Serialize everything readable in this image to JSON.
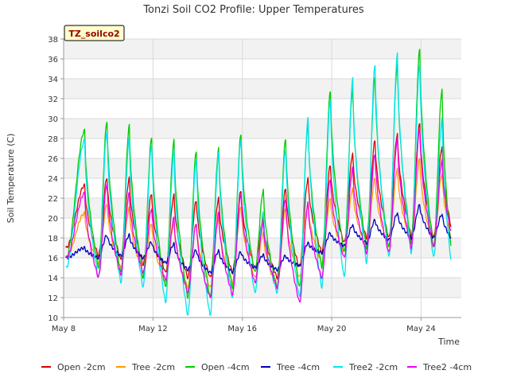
{
  "chart_data": {
    "type": "line",
    "title": "Tonzi Soil CO2 Profile: Upper Temperatures",
    "badge": "TZ_soilco2",
    "xlabel": "Time",
    "ylabel": "Soil Temperature (C)",
    "x_ticks": [
      "May 8",
      "May 12",
      "May 16",
      "May 20",
      "May 24"
    ],
    "x_tick_days": [
      8,
      12,
      16,
      20,
      24
    ],
    "xlim_days": [
      8,
      25.8
    ],
    "x_start_day": 8.1,
    "x_end_day": 25.35,
    "ylim": [
      10,
      38
    ],
    "y_ticks": [
      10,
      12,
      14,
      16,
      18,
      20,
      22,
      24,
      26,
      28,
      30,
      32,
      34,
      36,
      38
    ],
    "grid": true,
    "legend_position": "bottom",
    "peak_days": [
      8.95,
      9.95,
      10.95,
      11.95,
      12.95,
      13.95,
      14.95,
      15.95,
      16.95,
      17.95,
      18.95,
      19.95,
      20.95,
      21.95,
      22.95,
      23.95,
      24.95
    ],
    "series": [
      {
        "name": "Open -2cm",
        "color": "#dd0000",
        "peaks": [
          23.3,
          24.1,
          24.0,
          22.5,
          22.3,
          21.8,
          22.0,
          22.8,
          20.0,
          23.0,
          24.0,
          25.3,
          26.5,
          27.8,
          28.5,
          29.5,
          27.2
        ],
        "mins": [
          17.0,
          16.2,
          15.8,
          15.3,
          14.5,
          14.0,
          14.0,
          14.5,
          15.0,
          14.0,
          15.0,
          16.5,
          17.5,
          18.0,
          18.0,
          18.2,
          18.0,
          19.0
        ]
      },
      {
        "name": "Tree -2cm",
        "color": "#ff9900",
        "peaks": [
          20.5,
          21.5,
          21.0,
          19.5,
          19.5,
          19.5,
          20.0,
          21.2,
          18.5,
          21.0,
          21.5,
          22.0,
          23.0,
          24.0,
          25.0,
          26.0,
          24.5
        ],
        "mins": [
          16.0,
          15.5,
          15.0,
          14.5,
          13.5,
          13.0,
          13.0,
          13.5,
          14.0,
          13.0,
          14.0,
          15.5,
          16.5,
          17.0,
          17.0,
          17.5,
          17.0,
          18.0
        ]
      },
      {
        "name": "Open -4cm",
        "color": "#00cc00",
        "peaks": [
          28.8,
          29.8,
          29.3,
          28.2,
          27.8,
          26.8,
          27.0,
          28.5,
          22.8,
          28.0,
          29.5,
          32.8,
          33.0,
          34.2,
          35.5,
          37.0,
          33.0
        ],
        "mins": [
          16.0,
          15.0,
          14.5,
          14.0,
          13.0,
          12.0,
          12.0,
          13.0,
          14.5,
          13.0,
          13.0,
          15.0,
          16.5,
          17.0,
          17.0,
          17.5,
          17.0,
          17.0
        ]
      },
      {
        "name": "Tree -4cm",
        "color": "#0000bb",
        "peaks": [
          17.0,
          18.3,
          18.3,
          17.6,
          17.4,
          16.8,
          16.7,
          16.6,
          16.3,
          16.2,
          17.5,
          18.5,
          19.3,
          19.8,
          20.5,
          21.3,
          20.4
        ],
        "mins": [
          16.0,
          16.0,
          16.2,
          16.0,
          15.5,
          14.8,
          14.5,
          14.6,
          15.0,
          14.8,
          15.2,
          16.5,
          17.2,
          17.5,
          17.8,
          18.0,
          18.0,
          18.0
        ]
      },
      {
        "name": "Tree2 -2cm",
        "color": "#00e5ee",
        "peaks": [
          27.8,
          28.8,
          28.0,
          27.5,
          26.8,
          26.0,
          26.5,
          28.0,
          20.5,
          27.0,
          30.0,
          32.0,
          34.0,
          35.5,
          36.5,
          35.5,
          30.0
        ],
        "mins": [
          15.0,
          14.0,
          13.5,
          13.0,
          11.5,
          10.2,
          10.2,
          12.0,
          12.5,
          12.5,
          12.0,
          13.0,
          14.0,
          15.5,
          16.0,
          16.5,
          16.0,
          15.5
        ]
      },
      {
        "name": "Tree2 -4cm",
        "color": "#ee00ee",
        "peaks": [
          22.5,
          23.5,
          22.5,
          21.0,
          20.0,
          19.5,
          20.5,
          22.5,
          19.5,
          22.0,
          21.5,
          24.0,
          25.0,
          26.5,
          28.0,
          29.0,
          25.8
        ],
        "mins": [
          16.0,
          14.0,
          14.3,
          14.5,
          13.8,
          12.5,
          12.0,
          12.3,
          13.5,
          13.0,
          11.5,
          14.0,
          16.0,
          16.5,
          16.5,
          17.0,
          17.0,
          18.5
        ]
      }
    ]
  }
}
